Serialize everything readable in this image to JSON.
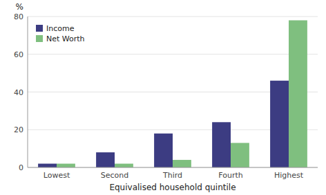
{
  "chart_data": {
    "type": "bar",
    "xlabel": "Equivalised household quintile",
    "ylabel": "%",
    "categories": [
      "Lowest",
      "Second",
      "Third",
      "Fourth",
      "Highest"
    ],
    "series": [
      {
        "name": "Income",
        "color": "#3c3c82",
        "values": [
          2,
          8,
          18,
          24,
          46
        ]
      },
      {
        "name": "Net Worth",
        "color": "#7fbf7f",
        "values": [
          2,
          2,
          4,
          13,
          78
        ]
      }
    ],
    "ylim": [
      0,
      80
    ],
    "yticks": [
      0,
      20,
      40,
      60,
      80
    ],
    "grid": true,
    "legend": "upper left"
  }
}
